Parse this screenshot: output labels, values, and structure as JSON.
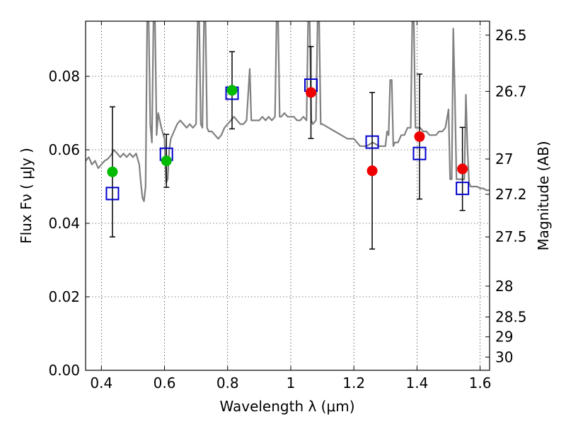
{
  "chart_data": {
    "type": "scatter",
    "title": "",
    "xlabel": "Wavelength  λ (μm)",
    "ylabel": "Flux  Fν  ( μJy )",
    "y2label": "Magnitude (AB)",
    "xlim": [
      0.35,
      1.63
    ],
    "ylim": [
      0.0,
      0.095
    ],
    "grid": true,
    "x_ticks": [
      "0.4",
      "0.6",
      "0.8",
      "1",
      "1.2",
      "1.4",
      "1.6"
    ],
    "x_tick_values": [
      0.4,
      0.6,
      0.8,
      1.0,
      1.2,
      1.4,
      1.6
    ],
    "y_ticks": [
      "0.00",
      "0.02",
      "0.04",
      "0.06",
      "0.08"
    ],
    "y_tick_values": [
      0.0,
      0.02,
      0.04,
      0.06,
      0.08
    ],
    "y2_ticks": [
      {
        "label": "26.5",
        "flux": 0.0912
      },
      {
        "label": "26.7",
        "flux": 0.0759
      },
      {
        "label": "27",
        "flux": 0.0575
      },
      {
        "label": "27.2",
        "flux": 0.0479
      },
      {
        "label": "27.5",
        "flux": 0.0363
      },
      {
        "label": "28",
        "flux": 0.0229
      },
      {
        "label": "28.5",
        "flux": 0.0145
      },
      {
        "label": "29",
        "flux": 0.0091
      },
      {
        "label": "30",
        "flux": 0.0036
      }
    ],
    "colors": {
      "model": "#808080",
      "observed_optical": "#00bb00",
      "observed_nir": "#ee0000",
      "model_photometry": "#0000cc",
      "error_bar": "#000000"
    },
    "series": [
      {
        "marker": "circle",
        "color": "green",
        "points": [
          {
            "x": 0.435,
            "y": 0.054,
            "err": 0.0177
          },
          {
            "x": 0.606,
            "y": 0.057,
            "err": 0.0072
          },
          {
            "x": 0.814,
            "y": 0.0762,
            "err": 0.0105
          }
        ]
      },
      {
        "marker": "circle",
        "color": "red",
        "points": [
          {
            "x": 1.064,
            "y": 0.0756,
            "err": 0.0125
          },
          {
            "x": 1.258,
            "y": 0.0543,
            "err": 0.0213
          },
          {
            "x": 1.408,
            "y": 0.0636,
            "err": 0.017
          },
          {
            "x": 1.544,
            "y": 0.0548,
            "err": 0.0113
          }
        ]
      },
      {
        "marker": "open-square",
        "color": "blue",
        "points": [
          {
            "x": 0.435,
            "y": 0.0481
          },
          {
            "x": 0.606,
            "y": 0.0588
          },
          {
            "x": 0.814,
            "y": 0.0754
          },
          {
            "x": 1.064,
            "y": 0.0776
          },
          {
            "x": 1.258,
            "y": 0.0621
          },
          {
            "x": 1.408,
            "y": 0.059
          },
          {
            "x": 1.544,
            "y": 0.0495
          }
        ]
      },
      {
        "marker": "line",
        "color": "gray",
        "points": [
          [
            0.35,
            0.057
          ],
          [
            0.36,
            0.058
          ],
          [
            0.37,
            0.056
          ],
          [
            0.38,
            0.057
          ],
          [
            0.39,
            0.055
          ],
          [
            0.4,
            0.056
          ],
          [
            0.41,
            0.057
          ],
          [
            0.42,
            0.0575
          ],
          [
            0.43,
            0.0585
          ],
          [
            0.44,
            0.06
          ],
          [
            0.45,
            0.059
          ],
          [
            0.46,
            0.058
          ],
          [
            0.47,
            0.059
          ],
          [
            0.48,
            0.058
          ],
          [
            0.49,
            0.059
          ],
          [
            0.5,
            0.058
          ],
          [
            0.51,
            0.059
          ],
          [
            0.52,
            0.056
          ],
          [
            0.525,
            0.051
          ],
          [
            0.53,
            0.047
          ],
          [
            0.535,
            0.046
          ],
          [
            0.54,
            0.05
          ],
          [
            0.545,
            0.095
          ],
          [
            0.55,
            0.095
          ],
          [
            0.555,
            0.067
          ],
          [
            0.56,
            0.062
          ],
          [
            0.565,
            0.095
          ],
          [
            0.57,
            0.095
          ],
          [
            0.575,
            0.064
          ],
          [
            0.58,
            0.07
          ],
          [
            0.59,
            0.066
          ],
          [
            0.6,
            0.063
          ],
          [
            0.605,
            0.051
          ],
          [
            0.61,
            0.052
          ],
          [
            0.615,
            0.06
          ],
          [
            0.62,
            0.063
          ],
          [
            0.63,
            0.065
          ],
          [
            0.64,
            0.067
          ],
          [
            0.65,
            0.068
          ],
          [
            0.66,
            0.067
          ],
          [
            0.67,
            0.066
          ],
          [
            0.68,
            0.067
          ],
          [
            0.69,
            0.066
          ],
          [
            0.7,
            0.067
          ],
          [
            0.705,
            0.095
          ],
          [
            0.71,
            0.095
          ],
          [
            0.715,
            0.067
          ],
          [
            0.72,
            0.066
          ],
          [
            0.725,
            0.095
          ],
          [
            0.73,
            0.095
          ],
          [
            0.735,
            0.066
          ],
          [
            0.74,
            0.065
          ],
          [
            0.75,
            0.065
          ],
          [
            0.76,
            0.064
          ],
          [
            0.77,
            0.063
          ],
          [
            0.78,
            0.064
          ],
          [
            0.79,
            0.066
          ],
          [
            0.8,
            0.067
          ],
          [
            0.81,
            0.068
          ],
          [
            0.82,
            0.069
          ],
          [
            0.83,
            0.068
          ],
          [
            0.84,
            0.067
          ],
          [
            0.85,
            0.067
          ],
          [
            0.86,
            0.068
          ],
          [
            0.87,
            0.082
          ],
          [
            0.875,
            0.068
          ],
          [
            0.88,
            0.068
          ],
          [
            0.89,
            0.068
          ],
          [
            0.9,
            0.068
          ],
          [
            0.91,
            0.069
          ],
          [
            0.92,
            0.068
          ],
          [
            0.93,
            0.069
          ],
          [
            0.94,
            0.068
          ],
          [
            0.95,
            0.069
          ],
          [
            0.955,
            0.095
          ],
          [
            0.96,
            0.095
          ],
          [
            0.965,
            0.069
          ],
          [
            0.97,
            0.069
          ],
          [
            0.98,
            0.07
          ],
          [
            0.99,
            0.069
          ],
          [
            1.0,
            0.069
          ],
          [
            1.01,
            0.069
          ],
          [
            1.02,
            0.068
          ],
          [
            1.03,
            0.068
          ],
          [
            1.04,
            0.069
          ],
          [
            1.05,
            0.068
          ],
          [
            1.055,
            0.095
          ],
          [
            1.06,
            0.095
          ],
          [
            1.065,
            0.068
          ],
          [
            1.07,
            0.067
          ],
          [
            1.08,
            0.068
          ],
          [
            1.085,
            0.095
          ],
          [
            1.09,
            0.095
          ],
          [
            1.095,
            0.067
          ],
          [
            1.1,
            0.067
          ],
          [
            1.12,
            0.066
          ],
          [
            1.14,
            0.065
          ],
          [
            1.16,
            0.064
          ],
          [
            1.18,
            0.063
          ],
          [
            1.2,
            0.063
          ],
          [
            1.22,
            0.061
          ],
          [
            1.24,
            0.061
          ],
          [
            1.26,
            0.062
          ],
          [
            1.28,
            0.061
          ],
          [
            1.3,
            0.061
          ],
          [
            1.305,
            0.065
          ],
          [
            1.31,
            0.064
          ],
          [
            1.315,
            0.079
          ],
          [
            1.32,
            0.079
          ],
          [
            1.325,
            0.061
          ],
          [
            1.33,
            0.062
          ],
          [
            1.34,
            0.062
          ],
          [
            1.35,
            0.064
          ],
          [
            1.36,
            0.064
          ],
          [
            1.37,
            0.066
          ],
          [
            1.38,
            0.066
          ],
          [
            1.385,
            0.095
          ],
          [
            1.39,
            0.095
          ],
          [
            1.395,
            0.066
          ],
          [
            1.4,
            0.066
          ],
          [
            1.41,
            0.066
          ],
          [
            1.42,
            0.065
          ],
          [
            1.43,
            0.065
          ],
          [
            1.44,
            0.064
          ],
          [
            1.45,
            0.064
          ],
          [
            1.46,
            0.064
          ],
          [
            1.47,
            0.065
          ],
          [
            1.48,
            0.065
          ],
          [
            1.49,
            0.066
          ],
          [
            1.5,
            0.071
          ],
          [
            1.505,
            0.052
          ],
          [
            1.51,
            0.052
          ],
          [
            1.515,
            0.093
          ],
          [
            1.52,
            0.075
          ],
          [
            1.525,
            0.052
          ],
          [
            1.53,
            0.052
          ],
          [
            1.54,
            0.052
          ],
          [
            1.55,
            0.052
          ],
          [
            1.555,
            0.075
          ],
          [
            1.56,
            0.06
          ],
          [
            1.565,
            0.051
          ],
          [
            1.57,
            0.05
          ],
          [
            1.58,
            0.05
          ],
          [
            1.59,
            0.05
          ],
          [
            1.6,
            0.0495
          ],
          [
            1.61,
            0.0495
          ],
          [
            1.62,
            0.049
          ],
          [
            1.63,
            0.049
          ]
        ]
      }
    ]
  }
}
